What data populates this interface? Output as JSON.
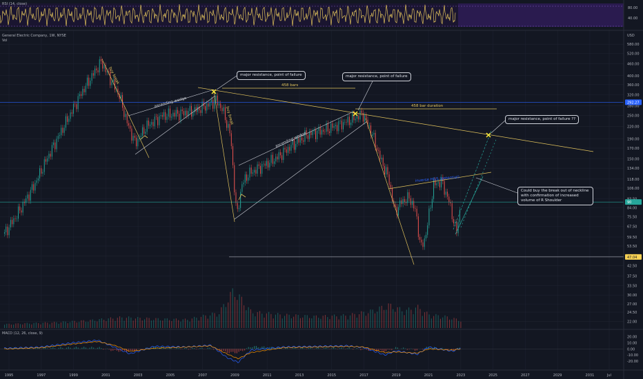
{
  "header": {
    "title": "General Electric Company, 1W, NYSE",
    "volume_label": "Vol",
    "rsi_label": "RSI (14, close)",
    "macd_label": "MACD (12, 26, close, 9)",
    "currency": "USD"
  },
  "colors": {
    "background": "#131722",
    "up": "#26a69a",
    "down": "#ef5350",
    "annotation": "#e3c45c",
    "trendline": "#d1d4dc",
    "rsi_line": "#e3c45c",
    "rsi_band": "#2a1b4f",
    "macd_line": "#2962ff",
    "signal_line": "#ff9800",
    "projection": "#26a69a"
  },
  "annotations": {
    "callout_1": "major resistance, point of failure",
    "callout_2": "major resistance, point of failure",
    "callout_3": "major resistance, point of failure ??",
    "callout_4": "Could buy the break out of neckline with confirmation of increased volume of R Shoulder",
    "bars_458": "458 bars",
    "bar_duration_458": "458 bar duration",
    "ascending_wedge_1": "ascending wedge",
    "ascending_wedge_2": "ascending wedge",
    "inverse_hs": "inverse H&S (potential)",
    "buy_break_1": "buy break",
    "buy_break_2": "buy break",
    "price_badge_upper": "292.27",
    "price_badge_current": "90",
    "price_badge_lower": "47.04"
  },
  "chart_data": [
    {
      "type": "candlestick",
      "title": "General Electric Company, 1W, NYSE",
      "scale": "log",
      "x_ticks": [
        "1995",
        "1997",
        "1999",
        "2001",
        "2003",
        "2005",
        "2007",
        "2009",
        "2011",
        "2013",
        "2015",
        "2017",
        "2019",
        "2021",
        "2023",
        "2025",
        "2027",
        "2029",
        "2031",
        "Jul"
      ],
      "y_ticks": [
        "580.00",
        "520.00",
        "460.00",
        "400.00",
        "360.00",
        "320.00",
        "280.00",
        "250.00",
        "220.00",
        "190.00",
        "170.00",
        "150.00",
        "134.00",
        "118.00",
        "106.00",
        "93.50",
        "84.00",
        "75.50",
        "67.50",
        "59.50",
        "53.50",
        "47.50",
        "42.50",
        "37.50",
        "33.50",
        "30.00",
        "27.00",
        "24.50",
        "22.00"
      ],
      "ylim": [
        20,
        600
      ],
      "series": [
        {
          "name": "Price",
          "x": [
            1994.7,
            1995.5,
            1996.5,
            1997.5,
            1998.5,
            1999.5,
            2000.3,
            2000.7,
            2001.3,
            2001.8,
            2002.3,
            2002.8,
            2003.5,
            2004.5,
            2005.5,
            2006.5,
            2007.4,
            2007.8,
            2008.2,
            2008.7,
            2009.1,
            2009.4,
            2009.8,
            2010.5,
            2011.5,
            2012.5,
            2013.5,
            2014.5,
            2015.5,
            2016.3,
            2016.9,
            2017.5,
            2018.0,
            2018.5,
            2018.9,
            2019.3,
            2019.8,
            2020.2,
            2020.5,
            2020.8,
            2021.3,
            2021.8,
            2022.3,
            2022.7,
            2022.85,
            2023.0
          ],
          "y": [
            62,
            78,
            108,
            160,
            230,
            330,
            420,
            470,
            380,
            320,
            230,
            180,
            220,
            250,
            255,
            265,
            285,
            300,
            270,
            200,
            75,
            110,
            125,
            135,
            150,
            175,
            200,
            210,
            225,
            240,
            255,
            200,
            150,
            120,
            80,
            90,
            95,
            80,
            52,
            60,
            110,
            115,
            88,
            62,
            75,
            90
          ]
        }
      ]
    },
    {
      "type": "bar",
      "title": "Vol",
      "x": [
        1994.7,
        1996,
        1998,
        2000,
        2002,
        2004,
        2006,
        2008,
        2008.9,
        2009.3,
        2010,
        2012,
        2014,
        2016,
        2017.5,
        2018.5,
        2019.5,
        2020.3,
        2021,
        2022,
        2023
      ],
      "values": [
        0.1,
        0.12,
        0.15,
        0.2,
        0.28,
        0.24,
        0.22,
        0.4,
        1.0,
        0.8,
        0.42,
        0.34,
        0.3,
        0.33,
        0.45,
        0.6,
        0.45,
        0.55,
        0.35,
        0.3,
        0.2
      ]
    },
    {
      "type": "line",
      "title": "RSI (14, close)",
      "y_ticks": [
        "80.00",
        "40.00"
      ],
      "ylim": [
        0,
        100
      ]
    },
    {
      "type": "line",
      "title": "MACD (12, 26, close, 9)",
      "y_ticks": [
        "20.00",
        "10.00",
        "0.00",
        "-10.00",
        "-20.00"
      ],
      "ylim": [
        -30,
        25
      ],
      "series": [
        {
          "name": "MACD",
          "x": [
            1995,
            1997,
            1999,
            2000.5,
            2001.5,
            2002.5,
            2004,
            2006,
            2007.5,
            2008.5,
            2009.2,
            2010,
            2012,
            2014,
            2016,
            2017,
            2018.3,
            2019,
            2020.3,
            2021,
            2022.5,
            2023
          ],
          "y": [
            1,
            3,
            10,
            14,
            3,
            -8,
            4,
            3,
            6,
            -14,
            -22,
            -2,
            3,
            4,
            5,
            2,
            -10,
            -3,
            -9,
            3,
            -4,
            2
          ]
        },
        {
          "name": "Signal",
          "x": [
            1995,
            1997,
            1999,
            2000.5,
            2001.5,
            2002.5,
            2004,
            2006,
            2007.5,
            2008.5,
            2009.2,
            2010,
            2012,
            2014,
            2016,
            2017,
            2018.3,
            2019,
            2020.3,
            2021,
            2022.5,
            2023
          ],
          "y": [
            0,
            2,
            8,
            12,
            6,
            -4,
            1,
            3,
            5,
            -8,
            -16,
            -6,
            2,
            3,
            4,
            3,
            -6,
            -5,
            -7,
            0,
            -2,
            0
          ]
        }
      ]
    }
  ]
}
